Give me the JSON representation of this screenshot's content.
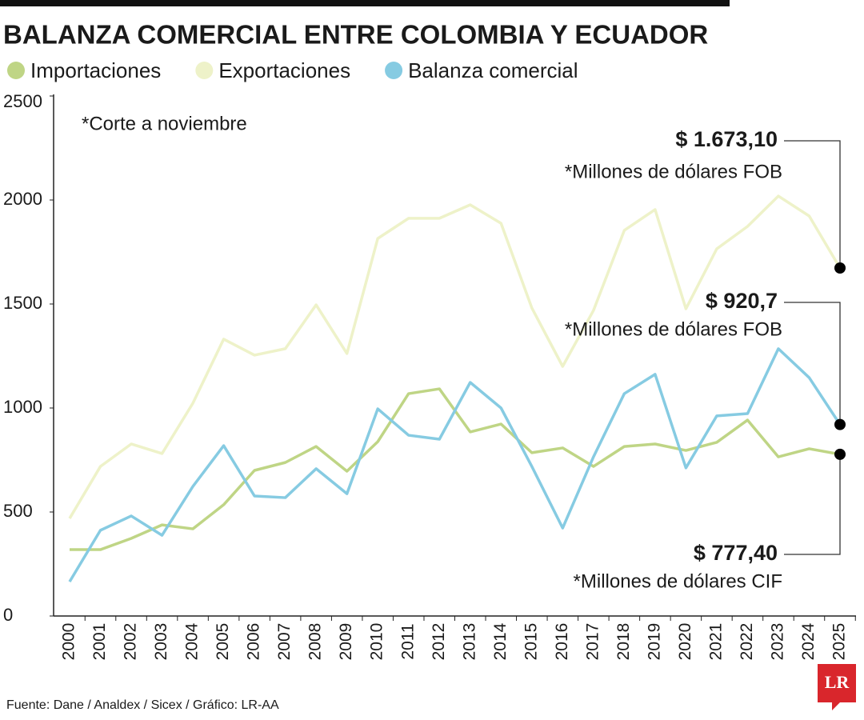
{
  "chart_data": {
    "type": "line",
    "title": "BALANZA COMERCIAL ENTRE COLOMBIA Y ECUADOR",
    "subtitle": "*Corte a noviembre",
    "source": "Fuente: Dane / Analdex / Sicex / Gráfico: LR-AA",
    "logo": "LR",
    "categories": [
      "2000",
      "2001",
      "2002",
      "2003",
      "2004",
      "2005",
      "2006",
      "2007",
      "2008",
      "2009",
      "2010",
      "2011",
      "2012",
      "2013",
      "2014",
      "2015",
      "2016",
      "2017",
      "2018",
      "2019",
      "2020",
      "2021",
      "2022",
      "2023",
      "2024",
      "2025"
    ],
    "series": [
      {
        "name": "Importaciones",
        "color": "#bfd585",
        "values": [
          319,
          319,
          373,
          438,
          419,
          535,
          700,
          738,
          815,
          696,
          838,
          1069,
          1092,
          885,
          923,
          785,
          808,
          719,
          815,
          827,
          796,
          835,
          942,
          765,
          804,
          777.4
        ]
      },
      {
        "name": "Exportaciones",
        "color": "#eef2c9",
        "values": [
          469,
          719,
          827,
          781,
          1023,
          1331,
          1254,
          1285,
          1496,
          1262,
          1815,
          1912,
          1912,
          1977,
          1888,
          1481,
          1200,
          1469,
          1854,
          1954,
          1477,
          1765,
          1873,
          2019,
          1923,
          1673.1
        ]
      },
      {
        "name": "Balanza comercial",
        "color": "#86cbe2",
        "values": [
          165,
          412,
          481,
          388,
          623,
          819,
          577,
          569,
          708,
          588,
          996,
          869,
          850,
          1123,
          1000,
          719,
          423,
          765,
          1069,
          1162,
          712,
          962,
          973,
          1285,
          1146,
          920.7
        ]
      }
    ],
    "annotations": [
      {
        "text": "$ 1.673,10",
        "note": "*Millones de dólares FOB"
      },
      {
        "text": "$ 920,7",
        "note": "*Millones de dólares FOB"
      },
      {
        "text": "$ 777,40",
        "note": "*Millones de dólares CIF"
      }
    ],
    "ylim": [
      0,
      2500
    ],
    "yticks": [
      0,
      500,
      1000,
      1500,
      2000,
      2500
    ],
    "grid": false
  }
}
